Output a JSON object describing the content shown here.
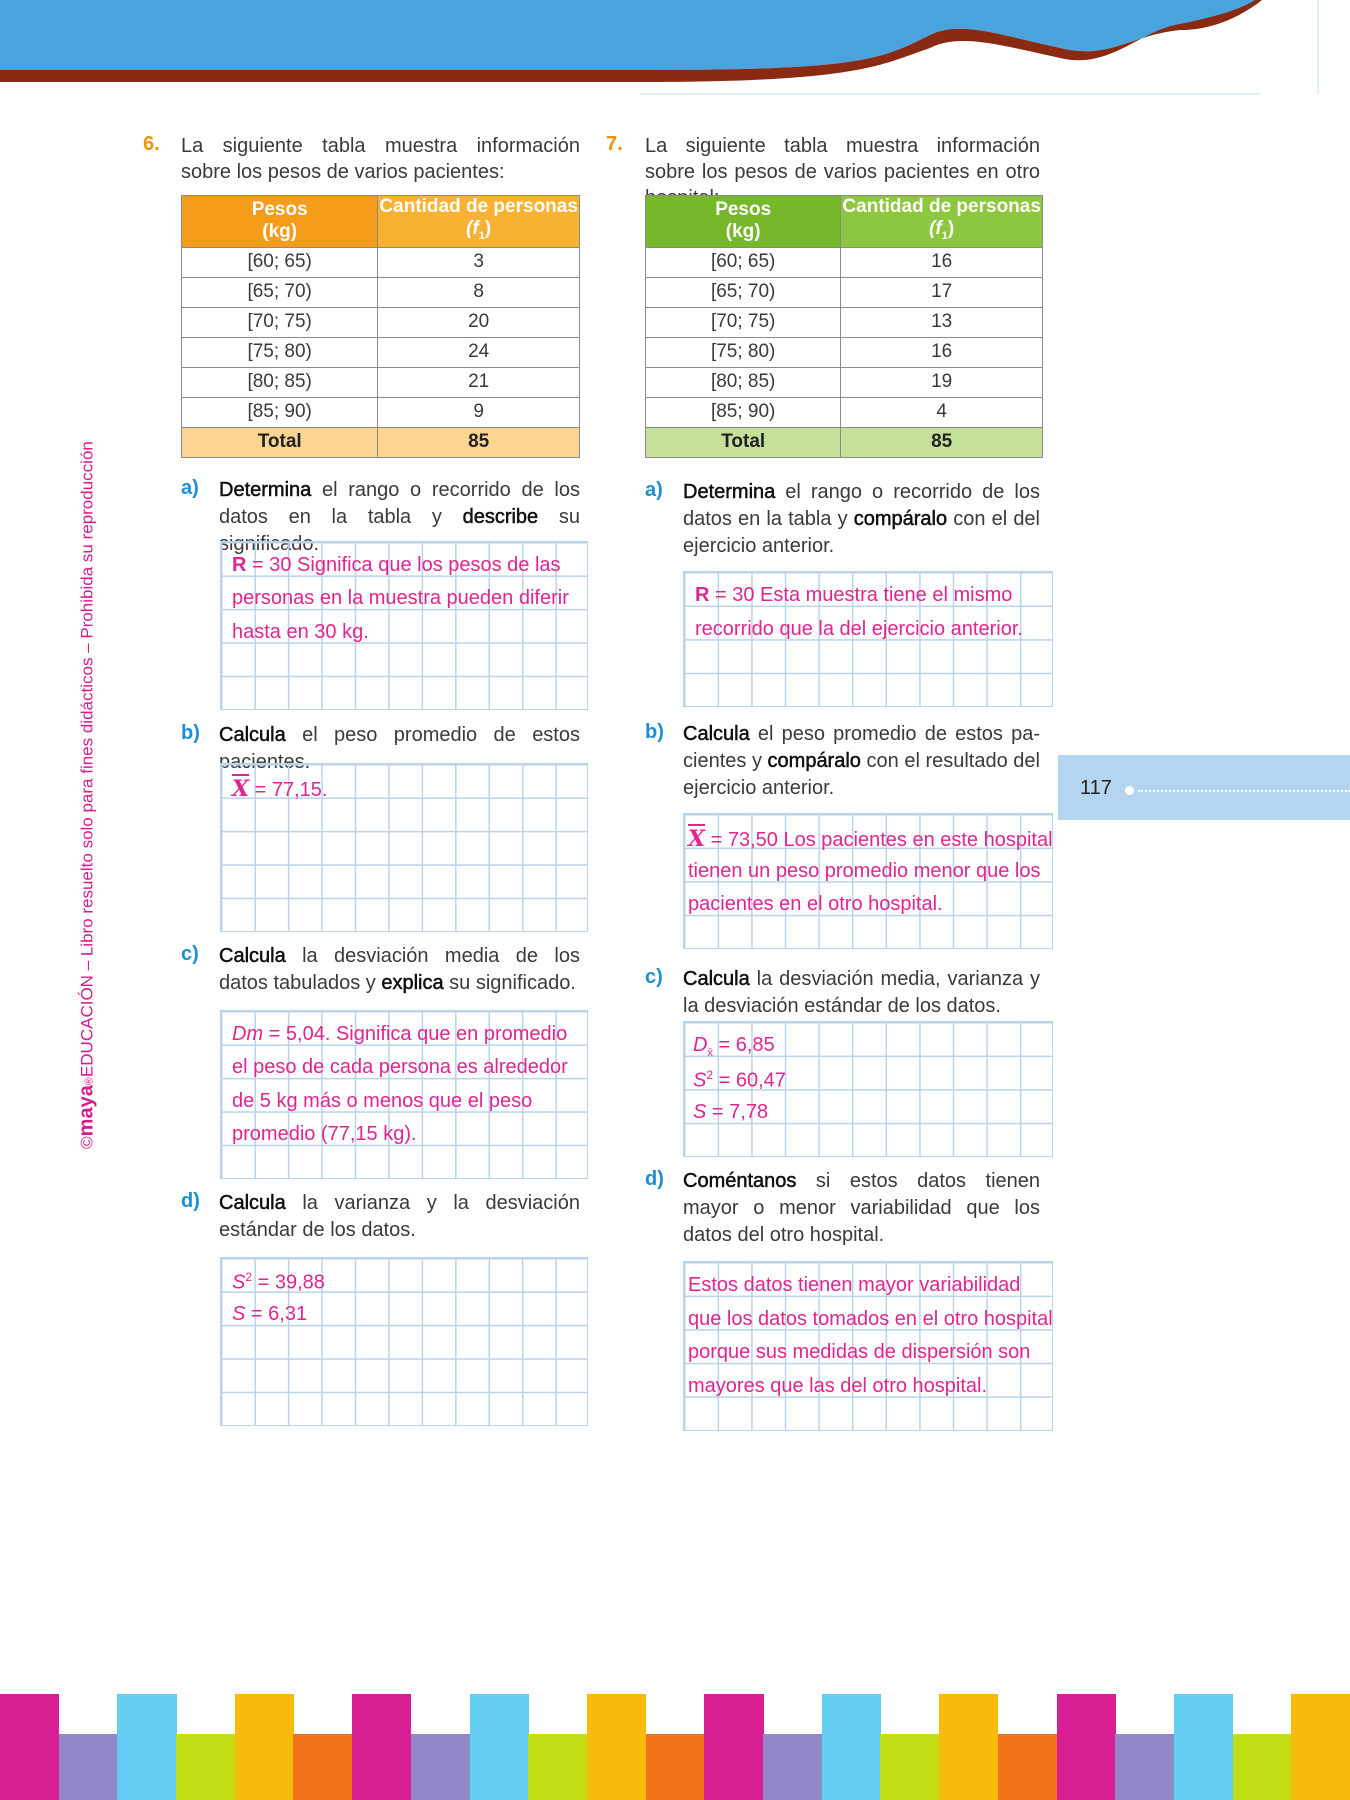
{
  "page_number": "117",
  "side_text": {
    "copyright": "©",
    "brand": "maya",
    "registered": "®",
    "text": "EDUCACIÓN – Libro resuelto solo para fines didácticos – Prohibida su reproducción"
  },
  "colors": {
    "banner_blue": "#4aa3dc",
    "banner_brown": "#8b2a12",
    "answer_pink": "#e0258f",
    "letter_blue": "#1e8ed2",
    "number_orange": "#f29100",
    "page_tab": "#b5d4ef",
    "stripes": [
      "#d91e93",
      "#9287c8",
      "#66cdf2",
      "#c0dd16",
      "#f9bb0b",
      "#f07219"
    ]
  },
  "exercises": [
    {
      "number": "6.",
      "intro": "La siguiente tabla muestra información sobre los pesos de varios pacientes:",
      "table": {
        "header_colors": [
          "#f59c1a",
          "#f8b133"
        ],
        "total_color": "#fcd592",
        "headers": [
          [
            "Pesos",
            "(kg)"
          ],
          [
            "Cantidad de personas",
            "(f",
            "1",
            ")"
          ]
        ],
        "rows": [
          [
            "[60; 65)",
            "3"
          ],
          [
            "[65; 70)",
            "8"
          ],
          [
            "[70; 75)",
            "20"
          ],
          [
            "[75; 80)",
            "24"
          ],
          [
            "[80; 85)",
            "21"
          ],
          [
            "[85; 90)",
            "9"
          ]
        ],
        "total": [
          "Total",
          "85"
        ]
      },
      "items": [
        {
          "letter": "a)",
          "prompt": [
            {
              "t": "Determina",
              "b": true
            },
            {
              "t": " el rango o recorrido de los datos en la tabla y "
            },
            {
              "t": "describe",
              "b": true
            },
            {
              "t": " su significado."
            }
          ],
          "answer": [
            [
              {
                "t": "R",
                "s": "b"
              },
              {
                "t": " = 30  Significa que los pesos de las"
              }
            ],
            [
              {
                "t": "personas en la muestra pueden diferir"
              }
            ],
            [
              {
                "t": "hasta en 30 kg."
              }
            ]
          ]
        },
        {
          "letter": "b)",
          "prompt": [
            {
              "t": "Calcula",
              "b": true
            },
            {
              "t": " el peso promedio de estos pacientes."
            }
          ],
          "answer": [
            [
              {
                "t": "X",
                "s": "ov"
              },
              {
                "t": " = 77,15."
              }
            ]
          ]
        },
        {
          "letter": "c)",
          "prompt": [
            {
              "t": "Calcula",
              "b": true
            },
            {
              "t": " la desviación media de los datos tabulados y "
            },
            {
              "t": "explica",
              "b": true
            },
            {
              "t": " su significado."
            }
          ],
          "answer": [
            [
              {
                "t": "Dm",
                "s": "i"
              },
              {
                "t": " = 5,04. Significa que en promedio"
              }
            ],
            [
              {
                "t": "el peso de cada persona es alrededor"
              }
            ],
            [
              {
                "t": "de 5 kg más o menos que el peso"
              }
            ],
            [
              {
                "t": "promedio (77,15 kg)."
              }
            ]
          ]
        },
        {
          "letter": "d)",
          "prompt": [
            {
              "t": "Calcula",
              "b": true
            },
            {
              "t": " la varianza y la desviación estándar de los datos."
            }
          ],
          "answer": [
            [
              {
                "t": "S",
                "s": "i"
              },
              {
                "t": "2",
                "s": "sup"
              },
              {
                "t": " = 39,88"
              }
            ],
            [
              {
                "t": "S",
                "s": "i"
              },
              {
                "t": " = 6,31"
              }
            ]
          ]
        }
      ]
    },
    {
      "number": "7.",
      "intro": "La siguiente tabla muestra información sobre los pesos de varios pacientes en otro hospital:",
      "table": {
        "header_colors": [
          "#76b82a",
          "#8dc63f"
        ],
        "total_color": "#c5e09b",
        "headers": [
          [
            "Pesos",
            "(kg)"
          ],
          [
            "Cantidad de personas",
            "(f",
            "1",
            ")"
          ]
        ],
        "rows": [
          [
            "[60; 65)",
            "16"
          ],
          [
            "[65; 70)",
            "17"
          ],
          [
            "[70; 75)",
            "13"
          ],
          [
            "[75; 80)",
            "16"
          ],
          [
            "[80; 85)",
            "19"
          ],
          [
            "[85; 90)",
            "4"
          ]
        ],
        "total": [
          "Total",
          "85"
        ]
      },
      "items": [
        {
          "letter": "a)",
          "prompt": [
            {
              "t": "Determina",
              "b": true
            },
            {
              "t": " el rango o recorrido de los datos en la tabla y "
            },
            {
              "t": "compáralo",
              "b": true
            },
            {
              "t": " con el del ejercicio anterior."
            }
          ],
          "answer": [
            [
              {
                "t": "R",
                "s": "b"
              },
              {
                "t": " = 30  Esta muestra tiene el mismo"
              }
            ],
            [
              {
                "t": "recorrido que la del ejercicio anterior."
              }
            ]
          ]
        },
        {
          "letter": "b)",
          "prompt": [
            {
              "t": "Calcula",
              "b": true
            },
            {
              "t": " el peso promedio de estos pa­cientes y "
            },
            {
              "t": "compáralo",
              "b": true
            },
            {
              "t": " con el resultado del ejercicio anterior."
            }
          ],
          "answer": [
            [
              {
                "t": "X",
                "s": "ov"
              },
              {
                "t": " = 73,50 Los pacientes en este hospital"
              }
            ],
            [
              {
                "t": "tienen un peso promedio menor que los"
              }
            ],
            [
              {
                "t": "pacientes en el otro hospital."
              }
            ]
          ]
        },
        {
          "letter": "c)",
          "prompt": [
            {
              "t": "Calcula",
              "b": true
            },
            {
              "t": " la desviación media, varianza y la desviación estándar de los datos."
            }
          ],
          "answer": [
            [
              {
                "t": "D",
                "s": "i"
              },
              {
                "t": "x̄",
                "s": "sub"
              },
              {
                "t": " = 6,85"
              }
            ],
            [
              {
                "t": "S",
                "s": "i"
              },
              {
                "t": "2",
                "s": "sup"
              },
              {
                "t": " = 60,47"
              }
            ],
            [
              {
                "t": "S",
                "s": "i"
              },
              {
                "t": " = 7,78"
              }
            ]
          ]
        },
        {
          "letter": "d)",
          "prompt": [
            {
              "t": "Coméntanos",
              "b": true
            },
            {
              "t": " si estos datos tienen mayor o menor variabilidad que los datos del otro hospital."
            }
          ],
          "answer": [
            [
              {
                "t": "Estos datos tienen mayor variabilidad"
              }
            ],
            [
              {
                "t": "que los datos tomados en el otro hospital"
              }
            ],
            [
              {
                "t": "porque sus medidas de dispersión son"
              }
            ],
            [
              {
                "t": "mayores que las del otro hospital."
              }
            ]
          ]
        }
      ]
    }
  ]
}
